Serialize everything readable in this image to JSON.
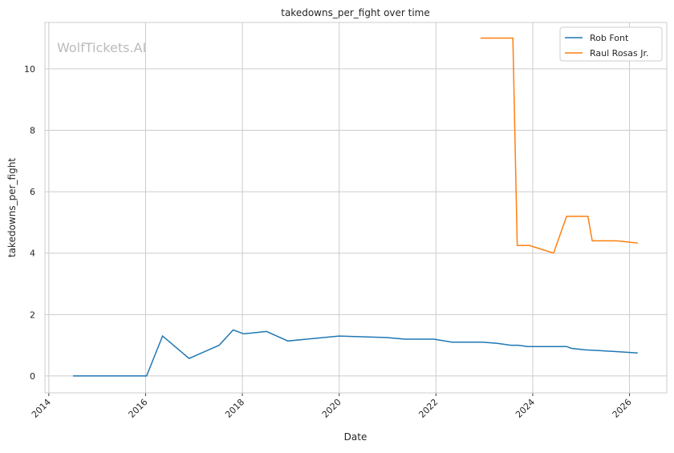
{
  "chart_data": {
    "type": "line",
    "title": "takedowns_per_fight over time",
    "xlabel": "Date",
    "ylabel": "takedowns_per_fight",
    "watermark": "WolfTickets.AI",
    "xlim": [
      2013.92,
      2026.77
    ],
    "ylim": [
      -0.55,
      11.51
    ],
    "xticks": [
      2014,
      2016,
      2018,
      2020,
      2022,
      2024,
      2026
    ],
    "xtick_labels": [
      "2014",
      "2016",
      "2018",
      "2020",
      "2022",
      "2024",
      "2026"
    ],
    "yticks": [
      0,
      2,
      4,
      6,
      8,
      10
    ],
    "ytick_labels": [
      "0",
      "2",
      "4",
      "6",
      "8",
      "10"
    ],
    "grid": true,
    "legend_position": "top-right",
    "series": [
      {
        "name": "Rob Font",
        "color": "#1f77b4",
        "x": [
          2014.5,
          2016.02,
          2016.35,
          2016.9,
          2017.52,
          2017.81,
          2018.03,
          2018.5,
          2018.94,
          2020.0,
          2020.98,
          2021.36,
          2021.96,
          2022.33,
          2022.96,
          2023.27,
          2023.55,
          2023.7,
          2023.9,
          2024.7,
          2024.8,
          2025.09,
          2025.33,
          2025.66,
          2026.17
        ],
        "y": [
          0,
          0,
          1.3,
          0.57,
          1.0,
          1.5,
          1.37,
          1.45,
          1.14,
          1.3,
          1.25,
          1.2,
          1.2,
          1.1,
          1.1,
          1.06,
          1.0,
          1.0,
          0.96,
          0.96,
          0.9,
          0.85,
          0.83,
          0.8,
          0.75
        ]
      },
      {
        "name": "Raul Rosas Jr.",
        "color": "#ff7f0e",
        "x": [
          2022.92,
          2023.59,
          2023.68,
          2023.93,
          2024.43,
          2024.7,
          2025.14,
          2025.23,
          2025.74,
          2026.17
        ],
        "y": [
          11,
          11,
          4.25,
          4.25,
          4.0,
          5.2,
          5.2,
          4.4,
          4.4,
          4.33
        ]
      }
    ]
  }
}
